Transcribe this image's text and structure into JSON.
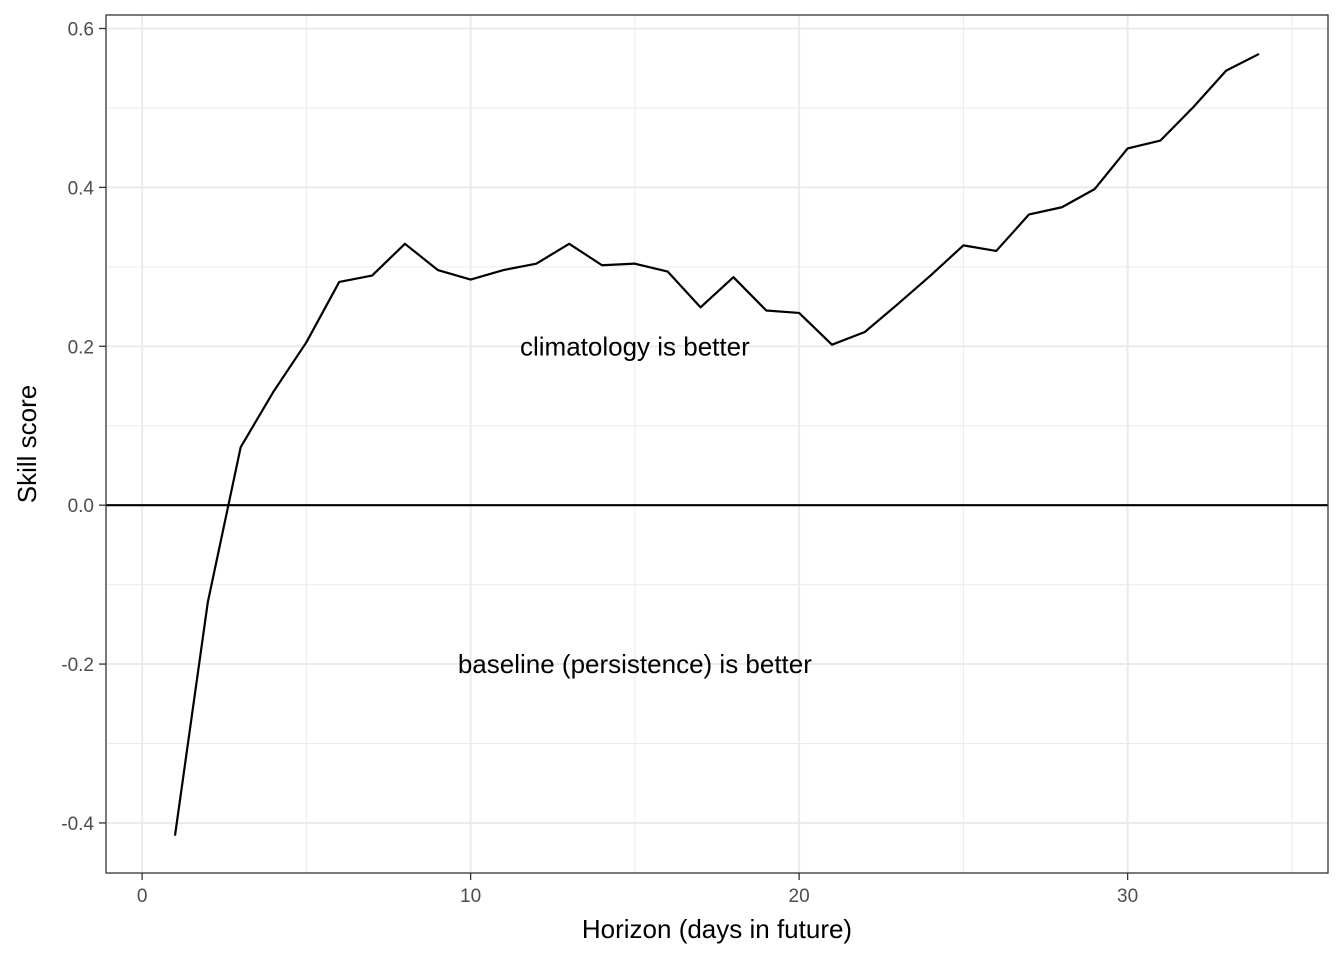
{
  "chart_data": {
    "type": "line",
    "xlabel": "Horizon (days in future)",
    "ylabel": "Skill score",
    "xlim": [
      -1.1,
      36.1
    ],
    "ylim": [
      -0.463,
      0.617
    ],
    "x_ticks": [
      0,
      10,
      20,
      30
    ],
    "x_tick_labels": [
      "0",
      "10",
      "20",
      "30"
    ],
    "y_ticks": [
      -0.4,
      -0.2,
      0.0,
      0.2,
      0.4,
      0.6
    ],
    "y_tick_labels": [
      "-0.4",
      "-0.2",
      "0.0",
      "0.2",
      "0.4",
      "0.6"
    ],
    "grid": true,
    "reference_line": {
      "y": 0
    },
    "annotations": [
      {
        "text": "climatology is better",
        "x": 15,
        "y": 0.2
      },
      {
        "text": "baseline (persistence) is better",
        "x": 15,
        "y": -0.2
      }
    ],
    "series": [
      {
        "color": "#000000",
        "x": [
          1,
          2,
          3,
          4,
          5,
          6,
          7,
          8,
          9,
          10,
          11,
          12,
          13,
          14,
          15,
          16,
          17,
          18,
          19,
          20,
          21,
          22,
          23,
          24,
          25,
          26,
          27,
          28,
          29,
          30,
          31,
          32,
          33,
          34
        ],
        "y": [
          -0.416,
          -0.122,
          0.073,
          0.143,
          0.205,
          0.281,
          0.289,
          0.329,
          0.296,
          0.284,
          0.296,
          0.304,
          0.329,
          0.302,
          0.304,
          0.294,
          0.249,
          0.287,
          0.245,
          0.242,
          0.202,
          0.218,
          0.253,
          0.289,
          0.327,
          0.32,
          0.366,
          0.375,
          0.398,
          0.449,
          0.459,
          0.501,
          0.547,
          0.568
        ]
      }
    ]
  }
}
